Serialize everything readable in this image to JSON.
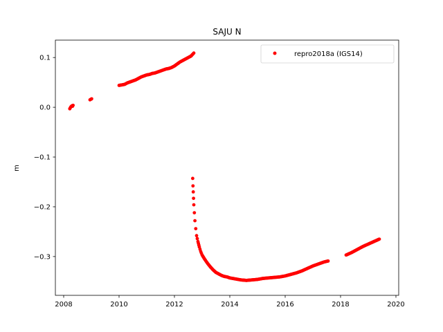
{
  "chart_data": {
    "type": "scatter",
    "title": "SAJU N",
    "xlabel": "",
    "ylabel": "m",
    "xlim": [
      2007.7,
      2020.1
    ],
    "ylim": [
      -0.378,
      0.135
    ],
    "xticks": [
      2008,
      2010,
      2012,
      2014,
      2016,
      2018,
      2020
    ],
    "xtick_labels": [
      "2008",
      "2010",
      "2012",
      "2014",
      "2016",
      "2018",
      "2020"
    ],
    "yticks": [
      0.1,
      0.0,
      -0.1,
      -0.2,
      -0.3
    ],
    "ytick_labels": [
      "0.1",
      "0.0",
      "−0.1",
      "−0.2",
      "−0.3"
    ],
    "grid": false,
    "legend_position": "upper right",
    "series": [
      {
        "name": "repro2018a (IGS14)",
        "color": "#ff0000",
        "marker": "circle",
        "points": [
          [
            2008.22,
            -0.003
          ],
          [
            2008.24,
            -0.001
          ],
          [
            2008.26,
            0.001
          ],
          [
            2008.28,
            0.002
          ],
          [
            2008.3,
            0.003
          ],
          [
            2008.32,
            0.002
          ],
          [
            2008.34,
            0.004
          ],
          [
            2008.95,
            0.015
          ],
          [
            2008.98,
            0.016
          ],
          [
            2009.01,
            0.017
          ],
          [
            2010.0,
            0.044
          ],
          [
            2010.1,
            0.045
          ],
          [
            2010.2,
            0.046
          ],
          [
            2010.3,
            0.049
          ],
          [
            2010.4,
            0.051
          ],
          [
            2010.5,
            0.053
          ],
          [
            2010.6,
            0.055
          ],
          [
            2010.7,
            0.058
          ],
          [
            2010.8,
            0.061
          ],
          [
            2010.9,
            0.063
          ],
          [
            2011.0,
            0.065
          ],
          [
            2011.1,
            0.066
          ],
          [
            2011.2,
            0.068
          ],
          [
            2011.3,
            0.069
          ],
          [
            2011.4,
            0.071
          ],
          [
            2011.5,
            0.073
          ],
          [
            2011.6,
            0.075
          ],
          [
            2011.7,
            0.077
          ],
          [
            2011.8,
            0.078
          ],
          [
            2011.9,
            0.08
          ],
          [
            2012.0,
            0.083
          ],
          [
            2012.1,
            0.087
          ],
          [
            2012.2,
            0.091
          ],
          [
            2012.3,
            0.094
          ],
          [
            2012.4,
            0.097
          ],
          [
            2012.5,
            0.1
          ],
          [
            2012.6,
            0.103
          ],
          [
            2012.65,
            0.106
          ],
          [
            2012.7,
            0.109
          ],
          [
            2012.66,
            -0.143
          ],
          [
            2012.67,
            -0.158
          ],
          [
            2012.68,
            -0.17
          ],
          [
            2012.69,
            -0.183
          ],
          [
            2012.7,
            -0.196
          ],
          [
            2012.72,
            -0.212
          ],
          [
            2012.74,
            -0.228
          ],
          [
            2012.77,
            -0.244
          ],
          [
            2012.8,
            -0.258
          ],
          [
            2012.85,
            -0.27
          ],
          [
            2012.9,
            -0.281
          ],
          [
            2012.95,
            -0.29
          ],
          [
            2013.0,
            -0.297
          ],
          [
            2013.1,
            -0.306
          ],
          [
            2013.2,
            -0.314
          ],
          [
            2013.3,
            -0.321
          ],
          [
            2013.4,
            -0.327
          ],
          [
            2013.5,
            -0.332
          ],
          [
            2013.6,
            -0.335
          ],
          [
            2013.7,
            -0.338
          ],
          [
            2013.8,
            -0.34
          ],
          [
            2013.9,
            -0.341
          ],
          [
            2014.0,
            -0.343
          ],
          [
            2014.2,
            -0.345
          ],
          [
            2014.4,
            -0.347
          ],
          [
            2014.6,
            -0.348
          ],
          [
            2014.8,
            -0.347
          ],
          [
            2015.0,
            -0.346
          ],
          [
            2015.2,
            -0.344
          ],
          [
            2015.4,
            -0.343
          ],
          [
            2015.6,
            -0.342
          ],
          [
            2015.8,
            -0.341
          ],
          [
            2016.0,
            -0.339
          ],
          [
            2016.2,
            -0.336
          ],
          [
            2016.4,
            -0.333
          ],
          [
            2016.6,
            -0.329
          ],
          [
            2016.8,
            -0.324
          ],
          [
            2017.0,
            -0.319
          ],
          [
            2017.2,
            -0.315
          ],
          [
            2017.4,
            -0.311
          ],
          [
            2017.55,
            -0.309
          ],
          [
            2018.2,
            -0.297
          ],
          [
            2018.4,
            -0.292
          ],
          [
            2018.6,
            -0.286
          ],
          [
            2018.8,
            -0.28
          ],
          [
            2019.0,
            -0.275
          ],
          [
            2019.2,
            -0.27
          ],
          [
            2019.4,
            -0.265
          ]
        ]
      }
    ]
  }
}
